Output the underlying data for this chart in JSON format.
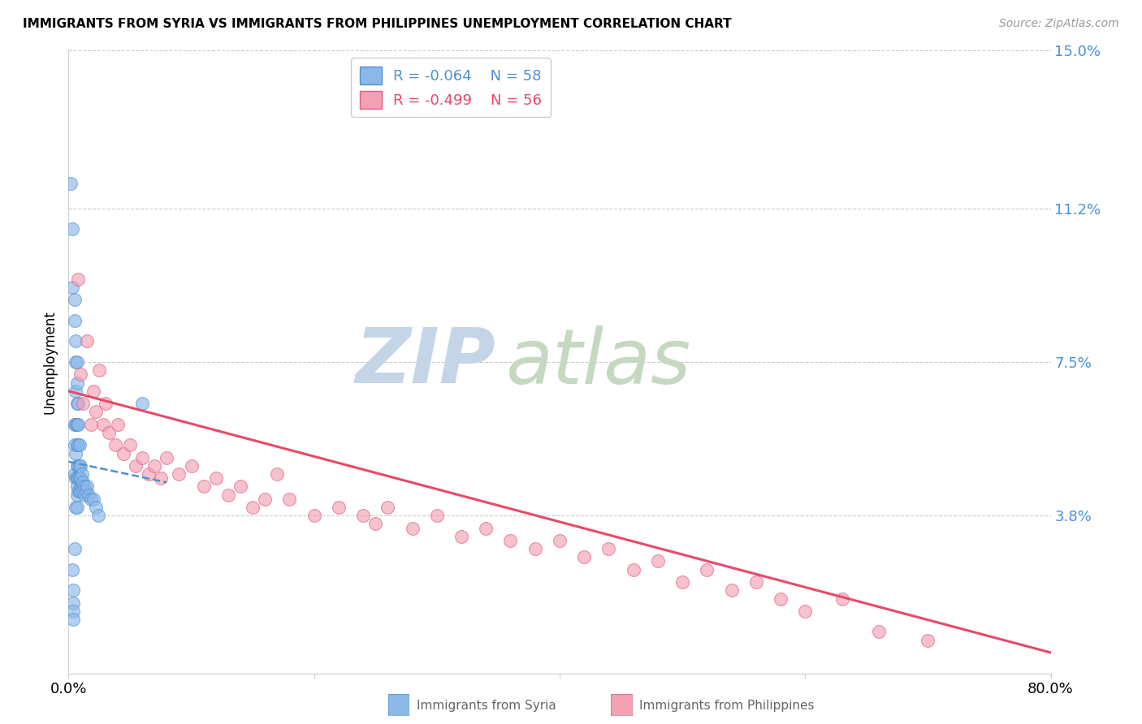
{
  "title": "IMMIGRANTS FROM SYRIA VS IMMIGRANTS FROM PHILIPPINES UNEMPLOYMENT CORRELATION CHART",
  "source": "Source: ZipAtlas.com",
  "ylabel": "Unemployment",
  "xlim": [
    0.0,
    0.8
  ],
  "ylim": [
    0.0,
    0.15
  ],
  "yticks": [
    0.0,
    0.038,
    0.075,
    0.112,
    0.15
  ],
  "ytick_labels": [
    "",
    "3.8%",
    "7.5%",
    "11.2%",
    "15.0%"
  ],
  "xticks": [
    0.0,
    0.2,
    0.4,
    0.6,
    0.8
  ],
  "xtick_labels": [
    "0.0%",
    "",
    "",
    "",
    "80.0%"
  ],
  "legend_r_syria": "R = -0.064",
  "legend_n_syria": "N = 58",
  "legend_r_phil": "R = -0.499",
  "legend_n_phil": "N = 56",
  "color_syria": "#8ab8e8",
  "color_philippines": "#f4a0b5",
  "trend_color_syria": "#5090d0",
  "trend_color_phil": "#e8496a",
  "watermark_zip": "ZIP",
  "watermark_atlas": "atlas",
  "watermark_color_zip": "#c8d8ee",
  "watermark_color_atlas": "#c8d8c8",
  "syria_x": [
    0.002,
    0.003,
    0.003,
    0.004,
    0.004,
    0.004,
    0.004,
    0.005,
    0.005,
    0.005,
    0.005,
    0.005,
    0.005,
    0.006,
    0.006,
    0.006,
    0.006,
    0.006,
    0.006,
    0.006,
    0.007,
    0.007,
    0.007,
    0.007,
    0.007,
    0.007,
    0.007,
    0.007,
    0.007,
    0.007,
    0.008,
    0.008,
    0.008,
    0.008,
    0.008,
    0.008,
    0.009,
    0.009,
    0.009,
    0.009,
    0.01,
    0.01,
    0.01,
    0.011,
    0.011,
    0.012,
    0.012,
    0.013,
    0.013,
    0.014,
    0.015,
    0.016,
    0.018,
    0.02,
    0.022,
    0.024,
    0.06,
    0.003
  ],
  "syria_y": [
    0.118,
    0.107,
    0.093,
    0.02,
    0.017,
    0.015,
    0.013,
    0.09,
    0.085,
    0.06,
    0.055,
    0.048,
    0.03,
    0.08,
    0.075,
    0.068,
    0.06,
    0.053,
    0.047,
    0.04,
    0.075,
    0.07,
    0.065,
    0.06,
    0.055,
    0.05,
    0.047,
    0.045,
    0.043,
    0.04,
    0.065,
    0.06,
    0.055,
    0.05,
    0.047,
    0.044,
    0.055,
    0.05,
    0.047,
    0.044,
    0.05,
    0.047,
    0.044,
    0.048,
    0.045,
    0.046,
    0.044,
    0.045,
    0.043,
    0.044,
    0.045,
    0.043,
    0.042,
    0.042,
    0.04,
    0.038,
    0.065,
    0.025
  ],
  "phil_x": [
    0.008,
    0.01,
    0.012,
    0.015,
    0.018,
    0.02,
    0.022,
    0.025,
    0.028,
    0.03,
    0.033,
    0.038,
    0.04,
    0.045,
    0.05,
    0.055,
    0.06,
    0.065,
    0.07,
    0.075,
    0.08,
    0.09,
    0.1,
    0.11,
    0.12,
    0.13,
    0.14,
    0.15,
    0.16,
    0.17,
    0.18,
    0.2,
    0.22,
    0.24,
    0.25,
    0.26,
    0.28,
    0.3,
    0.32,
    0.34,
    0.36,
    0.38,
    0.4,
    0.42,
    0.44,
    0.46,
    0.48,
    0.5,
    0.52,
    0.54,
    0.56,
    0.58,
    0.6,
    0.63,
    0.66,
    0.7
  ],
  "phil_y": [
    0.095,
    0.072,
    0.065,
    0.08,
    0.06,
    0.068,
    0.063,
    0.073,
    0.06,
    0.065,
    0.058,
    0.055,
    0.06,
    0.053,
    0.055,
    0.05,
    0.052,
    0.048,
    0.05,
    0.047,
    0.052,
    0.048,
    0.05,
    0.045,
    0.047,
    0.043,
    0.045,
    0.04,
    0.042,
    0.048,
    0.042,
    0.038,
    0.04,
    0.038,
    0.036,
    0.04,
    0.035,
    0.038,
    0.033,
    0.035,
    0.032,
    0.03,
    0.032,
    0.028,
    0.03,
    0.025,
    0.027,
    0.022,
    0.025,
    0.02,
    0.022,
    0.018,
    0.015,
    0.018,
    0.01,
    0.008
  ],
  "syria_trend_x": [
    0.0,
    0.08
  ],
  "syria_trend_y": [
    0.051,
    0.046
  ],
  "phil_trend_x": [
    0.0,
    0.8
  ],
  "phil_trend_y": [
    0.068,
    0.005
  ]
}
